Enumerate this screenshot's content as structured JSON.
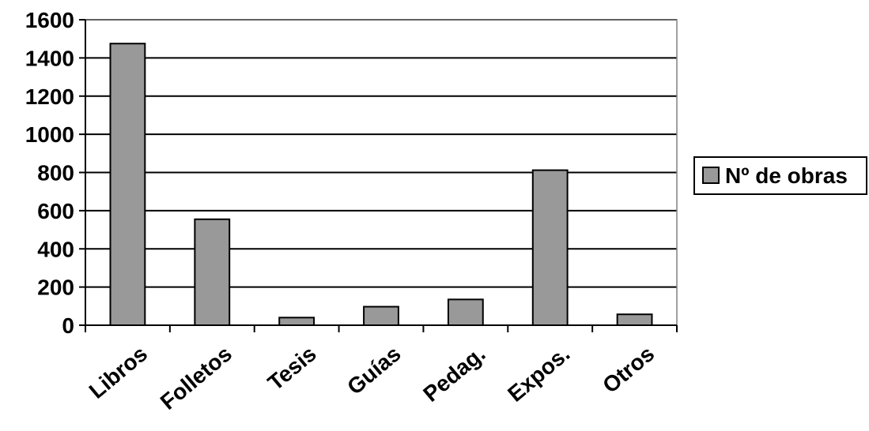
{
  "chart_data": {
    "type": "bar",
    "categories": [
      "Libros",
      "Folletos",
      "Tesis",
      "Guías",
      "Pedag.",
      "Expos.",
      "Otros"
    ],
    "series": [
      {
        "name": "Nº de obras",
        "values": [
          1475,
          555,
          40,
          97,
          135,
          812,
          57
        ]
      }
    ],
    "title": "",
    "xlabel": "",
    "ylabel": "",
    "ylim": [
      0,
      1600
    ],
    "yticks": [
      0,
      200,
      400,
      600,
      800,
      1000,
      1200,
      1400,
      1600
    ],
    "grid": true,
    "legend": "right",
    "colors": {
      "bar": "#999999",
      "plot_bg": "#ffffff",
      "grid": "#000000"
    }
  }
}
